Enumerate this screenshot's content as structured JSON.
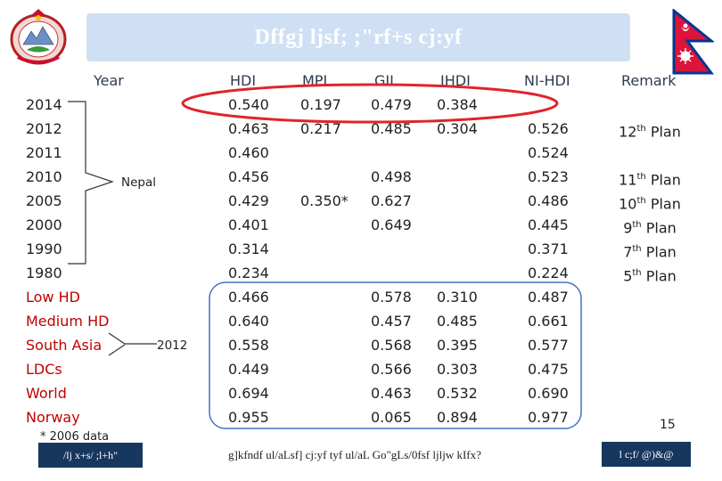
{
  "banner": {
    "title": "Dffgj ljsf; ;\"rf+s cj:yf",
    "color": "#cfe0f4",
    "emblem_icon": "nepal-emblem-icon",
    "flag_icon": "nepal-flag-icon"
  },
  "table": {
    "headers": {
      "year": "Year",
      "hdi": "HDI",
      "mpi": "MPI",
      "gii": "GII",
      "ihdi": "IHDI",
      "nihdi": "NI-HDI",
      "remark": "Remark"
    },
    "group_labels": {
      "nepal": "Nepal",
      "year_2012": "2012"
    },
    "rows": [
      {
        "year": "2014",
        "hdi": "0.540",
        "mpi": "0.197",
        "gii": "0.479",
        "ihdi": "0.384",
        "nihdi": "",
        "remark": ""
      },
      {
        "year": "2012",
        "hdi": "0.463",
        "mpi": "0.217",
        "gii": "0.485",
        "ihdi": "0.304",
        "nihdi": "0.526",
        "remark": "12th Plan"
      },
      {
        "year": "2011",
        "hdi": "0.460",
        "mpi": "",
        "gii": "",
        "ihdi": "",
        "nihdi": "0.524",
        "remark": ""
      },
      {
        "year": "2010",
        "hdi": "0.456",
        "mpi": "",
        "gii": "0.498",
        "ihdi": "",
        "nihdi": "0.523",
        "remark": "11th Plan"
      },
      {
        "year": "2005",
        "hdi": "0.429",
        "mpi": "0.350*",
        "gii": "0.627",
        "ihdi": "",
        "nihdi": "0.486",
        "remark": "10th Plan"
      },
      {
        "year": "2000",
        "hdi": "0.401",
        "mpi": "",
        "gii": "0.649",
        "ihdi": "",
        "nihdi": "0.445",
        "remark": "9th Plan"
      },
      {
        "year": "1990",
        "hdi": "0.314",
        "mpi": "",
        "gii": "",
        "ihdi": "",
        "nihdi": "0.371",
        "remark": "7th Plan"
      },
      {
        "year": "1980",
        "hdi": "0.234",
        "mpi": "",
        "gii": "",
        "ihdi": "",
        "nihdi": "0.224",
        "remark": "5th Plan"
      },
      {
        "year": "Low HD",
        "hdi": "0.466",
        "mpi": "",
        "gii": "0.578",
        "ihdi": "0.310",
        "nihdi": "0.487",
        "remark": ""
      },
      {
        "year": "Medium HD",
        "hdi": "0.640",
        "mpi": "",
        "gii": "0.457",
        "ihdi": "0.485",
        "nihdi": "0.661",
        "remark": ""
      },
      {
        "year": "South Asia",
        "hdi": "0.558",
        "mpi": "",
        "gii": "0.568",
        "ihdi": "0.395",
        "nihdi": "0.577",
        "remark": ""
      },
      {
        "year": "LDCs",
        "hdi": "0.449",
        "mpi": "",
        "gii": "0.566",
        "ihdi": "0.303",
        "nihdi": "0.475",
        "remark": ""
      },
      {
        "year": "World",
        "hdi": "0.694",
        "mpi": "",
        "gii": "0.463",
        "ihdi": "0.532",
        "nihdi": "0.690",
        "remark": ""
      },
      {
        "year": "Norway",
        "hdi": "0.955",
        "mpi": "",
        "gii": "0.065",
        "ihdi": "0.894",
        "nihdi": "0.977",
        "remark": ""
      }
    ]
  },
  "footnote": "* 2006 data",
  "page_number": "15",
  "footer": {
    "left": "/lj x+s/ ;l+h\"",
    "center": "g]kfndf ul/aLsf] cj:yf tyf ul/aL Go\"gLs/0fsf ljljw kIfx?",
    "right": "l c;f/ @)&@"
  },
  "colors": {
    "highlight_red": "#e0242a",
    "highlight_blue": "#4472c4",
    "regional_label": "#c00000",
    "footer_bg": "#17375e"
  }
}
